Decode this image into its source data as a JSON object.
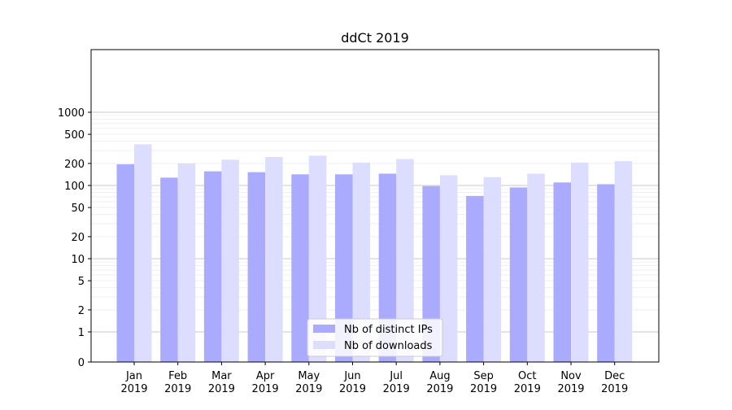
{
  "chart_data": {
    "type": "bar",
    "title": "ddCt 2019",
    "xlabel": "",
    "ylabel": "",
    "yscale": "symlog",
    "ylim": [
      0,
      1300
    ],
    "yticks": [
      0,
      1,
      2,
      5,
      10,
      20,
      50,
      100,
      200,
      500,
      1000
    ],
    "ytick_labels": [
      "0",
      "1",
      "2",
      "5",
      "10",
      "20",
      "50",
      "100",
      "200",
      "500",
      "1000"
    ],
    "grid": "y major and minor",
    "legend_position": "lower center",
    "categories": [
      "Jan\n2019",
      "Feb\n2019",
      "Mar\n2019",
      "Apr\n2019",
      "May\n2019",
      "Jun\n2019",
      "Jul\n2019",
      "Aug\n2019",
      "Sep\n2019",
      "Oct\n2019",
      "Nov\n2019",
      "Dec\n2019"
    ],
    "series": [
      {
        "name": "Nb of distinct IPs",
        "color": "#aaaaff",
        "values": [
          195,
          128,
          156,
          152,
          142,
          142,
          145,
          98,
          72,
          94,
          110,
          104
        ]
      },
      {
        "name": "Nb of downloads",
        "color": "#ddddff",
        "values": [
          365,
          200,
          225,
          245,
          255,
          205,
          230,
          138,
          130,
          145,
          205,
          215
        ]
      }
    ]
  }
}
